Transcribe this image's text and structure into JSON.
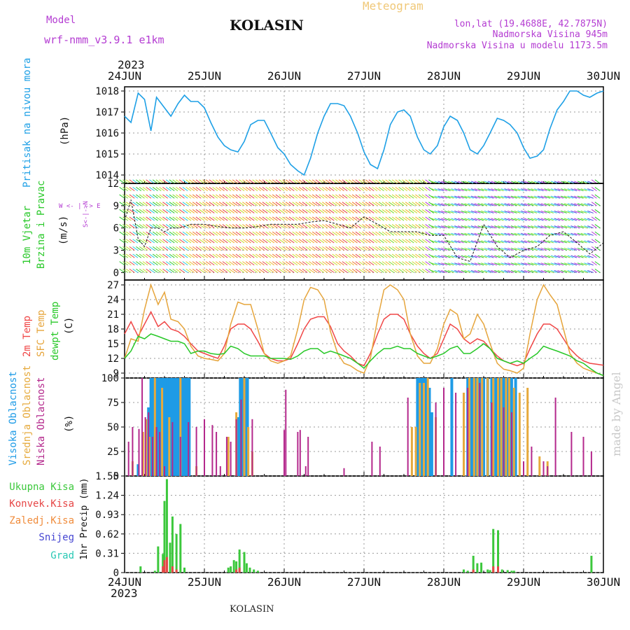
{
  "header": {
    "model_label": "Model",
    "model_name": "wrf-nmm_v3.9.1 e1km",
    "station": "KOLASIN",
    "product": "Meteogram",
    "coords": "lon,lat (19.4688E, 42.7875N)",
    "elevation": "Nadmorska Visina 945m",
    "model_elevation": "Nadmorska Visina u modelu 1173.5m",
    "footer_station": "KOLASIN",
    "credit": "made by Angel",
    "year": "2023"
  },
  "colors": {
    "pressure": "#1ea0e6",
    "t2m": "#f04646",
    "sfc": "#e6a53c",
    "dewpt": "#28c828",
    "high_cloud": "#1e9be6",
    "mid_cloud": "#e6aa3c",
    "low_cloud": "#b4288c",
    "total_precip": "#3cc83c",
    "conv_precip": "#e64646",
    "frz_precip": "#f08c3c",
    "snow": "#4646d2",
    "grad": "#28c8b4",
    "wind_label": "#b43cd2",
    "credit": "#c8c8c8"
  },
  "chart_data": [
    {
      "type": "line",
      "panel": "pressure",
      "ylabel": "Pritisak na nivou mora",
      "unit": "(hPa)",
      "yticks": [
        1014,
        1015,
        1016,
        1017,
        1018
      ],
      "ylim": [
        1013.6,
        1018.2
      ],
      "x_days": [
        "24JUN",
        "25JUN",
        "26JUN",
        "27JUN",
        "28JUN",
        "29JUN",
        "30JUN"
      ],
      "x": [
        0,
        0.08,
        0.17,
        0.25,
        0.33,
        0.4,
        0.5,
        0.58,
        0.67,
        0.75,
        0.83,
        0.92,
        1.0,
        1.08,
        1.17,
        1.25,
        1.33,
        1.42,
        1.5,
        1.58,
        1.67,
        1.75,
        1.83,
        1.92,
        2.0,
        2.08,
        2.17,
        2.25,
        2.33,
        2.42,
        2.5,
        2.58,
        2.67,
        2.75,
        2.83,
        2.92,
        3.0,
        3.08,
        3.17,
        3.25,
        3.33,
        3.42,
        3.5,
        3.58,
        3.67,
        3.75,
        3.83,
        3.92,
        4.0,
        4.08,
        4.17,
        4.25,
        4.33,
        4.42,
        4.5,
        4.58,
        4.67,
        4.75,
        4.83,
        4.92,
        5.0,
        5.08,
        5.17,
        5.25,
        5.33,
        5.42,
        5.5,
        5.58,
        5.67,
        5.75,
        5.83,
        5.92,
        6.0
      ],
      "y": [
        1016.8,
        1016.5,
        1017.9,
        1017.6,
        1016.1,
        1017.7,
        1017.2,
        1016.8,
        1017.4,
        1017.8,
        1017.5,
        1017.5,
        1017.2,
        1016.5,
        1015.8,
        1015.4,
        1015.2,
        1015.1,
        1015.6,
        1016.4,
        1016.6,
        1016.6,
        1016.0,
        1015.3,
        1015.0,
        1014.5,
        1014.2,
        1014.0,
        1014.8,
        1016.0,
        1016.8,
        1017.4,
        1017.4,
        1017.3,
        1016.8,
        1016.0,
        1015.1,
        1014.5,
        1014.3,
        1015.2,
        1016.4,
        1017.0,
        1017.1,
        1016.8,
        1015.8,
        1015.2,
        1015.0,
        1015.4,
        1016.3,
        1016.8,
        1016.6,
        1016.0,
        1015.2,
        1015.0,
        1015.4,
        1016.0,
        1016.7,
        1016.6,
        1016.4,
        1016.0,
        1015.3,
        1014.8,
        1014.9,
        1015.2,
        1016.2,
        1017.1,
        1017.5,
        1018.0,
        1018.0,
        1017.8,
        1017.7,
        1017.9,
        1018.0
      ],
      "color": "#1ea0e6"
    },
    {
      "type": "line",
      "panel": "wind",
      "ylabel": "10m Vjetar Brzina i Pravac",
      "unit": "(m/s)",
      "compass": "W <- | -> E",
      "compass_ns": "S<-|->N",
      "yticks": [
        0,
        3,
        6,
        9,
        12
      ],
      "ylim": [
        -1,
        12
      ],
      "x_days": [
        "24JUN",
        "25JUN",
        "26JUN",
        "27JUN",
        "28JUN",
        "29JUN",
        "30JUN"
      ],
      "x": [
        0,
        0.08,
        0.17,
        0.25,
        0.33,
        0.42,
        0.5,
        0.58,
        0.67,
        0.75,
        0.83,
        0.92,
        1.0,
        1.17,
        1.33,
        1.5,
        1.67,
        1.83,
        2.0,
        2.17,
        2.33,
        2.5,
        2.67,
        2.83,
        3.0,
        3.17,
        3.33,
        3.5,
        3.67,
        3.83,
        4.0,
        4.17,
        4.33,
        4.5,
        4.67,
        4.83,
        5.0,
        5.17,
        5.33,
        5.5,
        5.67,
        5.83,
        6.0
      ],
      "y": [
        7.0,
        9.8,
        4.5,
        3.5,
        6.0,
        6.0,
        5.5,
        6.0,
        6.0,
        6.2,
        6.5,
        6.5,
        6.5,
        6.2,
        6.0,
        6.0,
        6.2,
        6.5,
        6.5,
        6.5,
        6.8,
        7.0,
        6.5,
        6.0,
        7.5,
        6.5,
        5.5,
        5.5,
        5.5,
        5.0,
        5.0,
        2.0,
        1.5,
        6.5,
        3.5,
        2.0,
        3.0,
        3.5,
        5.0,
        5.5,
        4.0,
        2.5,
        4.0
      ],
      "color": "#1a1a1a"
    },
    {
      "type": "line",
      "panel": "temperature",
      "ylabel": "2m Temp / SFC Temp / dewpt Temp",
      "unit": "(C)",
      "yticks": [
        9,
        12,
        15,
        18,
        21,
        24,
        27
      ],
      "ylim": [
        8,
        28
      ],
      "x_days": [
        "24JUN",
        "25JUN",
        "26JUN",
        "27JUN",
        "28JUN",
        "29JUN",
        "30JUN"
      ],
      "x": [
        0,
        0.08,
        0.17,
        0.25,
        0.33,
        0.42,
        0.5,
        0.58,
        0.67,
        0.75,
        0.83,
        0.92,
        1.0,
        1.08,
        1.17,
        1.25,
        1.33,
        1.42,
        1.5,
        1.58,
        1.67,
        1.75,
        1.83,
        1.92,
        2.0,
        2.08,
        2.17,
        2.25,
        2.33,
        2.42,
        2.5,
        2.58,
        2.67,
        2.75,
        2.83,
        2.92,
        3.0,
        3.08,
        3.17,
        3.25,
        3.33,
        3.42,
        3.5,
        3.58,
        3.67,
        3.75,
        3.83,
        3.92,
        4.0,
        4.08,
        4.17,
        4.25,
        4.33,
        4.42,
        4.5,
        4.58,
        4.67,
        4.75,
        4.83,
        4.92,
        5.0,
        5.08,
        5.17,
        5.25,
        5.33,
        5.42,
        5.5,
        5.58,
        5.67,
        5.75,
        5.83,
        5.92,
        6.0
      ],
      "series": [
        {
          "name": "2m Temp",
          "color": "#f04646",
          "values": [
            17.0,
            19.5,
            16.5,
            19.0,
            21.5,
            18.5,
            19.5,
            18.0,
            17.5,
            16.5,
            15.0,
            13.5,
            13.0,
            12.5,
            12.0,
            14.5,
            18.0,
            19.0,
            19.0,
            18.0,
            15.5,
            13.0,
            12.0,
            11.5,
            11.5,
            12.0,
            15.0,
            18.0,
            20.0,
            20.5,
            20.5,
            18.5,
            15.0,
            13.5,
            12.5,
            11.0,
            10.5,
            13.0,
            17.0,
            20.0,
            21.0,
            21.0,
            20.0,
            17.0,
            14.5,
            13.0,
            12.0,
            13.0,
            16.0,
            19.0,
            18.0,
            16.0,
            15.0,
            16.0,
            15.5,
            14.0,
            12.5,
            11.5,
            11.0,
            10.5,
            11.0,
            14.0,
            17.0,
            19.0,
            19.0,
            18.0,
            16.0,
            14.0,
            12.5,
            11.5,
            11.0,
            10.8,
            10.6
          ]
        },
        {
          "name": "SFC Temp",
          "color": "#e6a53c",
          "values": [
            12.0,
            16.0,
            15.5,
            22.0,
            27.0,
            23.0,
            25.5,
            20.0,
            19.5,
            18.0,
            14.5,
            12.5,
            12.0,
            11.8,
            11.5,
            13.0,
            19.0,
            23.5,
            23.0,
            23.0,
            18.0,
            13.0,
            11.5,
            11.0,
            11.5,
            12.5,
            18.0,
            24.0,
            26.5,
            26.0,
            24.0,
            17.5,
            13.0,
            11.0,
            10.5,
            9.5,
            9.0,
            12.0,
            20.0,
            26.0,
            27.0,
            26.0,
            24.0,
            17.0,
            12.5,
            11.0,
            11.0,
            14.0,
            19.0,
            22.0,
            21.0,
            16.0,
            17.0,
            21.0,
            19.0,
            15.0,
            11.0,
            9.8,
            9.5,
            9.0,
            10.0,
            17.0,
            24.0,
            27.0,
            25.0,
            23.0,
            18.0,
            13.0,
            11.0,
            10.0,
            9.5,
            9.0,
            8.5
          ]
        },
        {
          "name": "dewpt Temp",
          "color": "#28c828",
          "values": [
            12.0,
            13.5,
            16.5,
            16.0,
            17.0,
            16.5,
            16.0,
            15.5,
            15.5,
            15.0,
            13.0,
            13.5,
            13.5,
            13.0,
            12.8,
            13.0,
            14.5,
            14.0,
            13.0,
            12.5,
            12.5,
            12.5,
            12.0,
            12.0,
            12.0,
            11.8,
            12.5,
            13.5,
            14.0,
            14.0,
            13.0,
            13.5,
            13.0,
            12.5,
            12.0,
            11.0,
            10.0,
            11.5,
            13.0,
            14.0,
            14.0,
            14.5,
            14.0,
            14.0,
            13.0,
            12.5,
            12.0,
            12.5,
            13.0,
            14.0,
            14.5,
            13.0,
            13.0,
            14.0,
            15.0,
            14.0,
            12.0,
            11.5,
            11.0,
            11.5,
            11.0,
            12.0,
            13.0,
            14.5,
            14.0,
            13.5,
            13.0,
            12.5,
            11.5,
            11.0,
            10.0,
            9.0,
            8.5
          ]
        }
      ]
    },
    {
      "type": "bar",
      "panel": "clouds",
      "ylabel": "Visoka Oblacnost / Srednja Oblacnost / Niska Oblacnost",
      "unit": "(%)",
      "yticks": [
        0,
        25,
        50,
        75,
        100
      ],
      "ylim": [
        0,
        100
      ],
      "x_days": [
        "24JUN",
        "25JUN",
        "26JUN",
        "27JUN",
        "28JUN",
        "29JUN",
        "30JUN"
      ],
      "series": [
        {
          "name": "Visoka Oblacnost",
          "color": "#1e9be6",
          "x": [
            0.17,
            0.3,
            0.33,
            0.36,
            0.39,
            0.42,
            0.45,
            0.48,
            0.51,
            0.54,
            0.57,
            0.6,
            0.63,
            0.66,
            0.69,
            0.72,
            0.75,
            0.78,
            0.81,
            1.42,
            1.45,
            1.48,
            1.51,
            1.54,
            3.67,
            3.7,
            3.73,
            3.76,
            3.79,
            3.82,
            3.85,
            4.1,
            4.3,
            4.33,
            4.36,
            4.4,
            4.45,
            4.5,
            4.55,
            4.6,
            4.65,
            4.7,
            4.75,
            4.8,
            4.85,
            4.9
          ],
          "values": [
            12,
            70,
            100,
            100,
            100,
            100,
            100,
            100,
            100,
            100,
            100,
            100,
            100,
            100,
            100,
            100,
            100,
            100,
            100,
            60,
            100,
            100,
            100,
            100,
            100,
            100,
            100,
            100,
            100,
            90,
            65,
            100,
            100,
            100,
            100,
            100,
            100,
            100,
            100,
            100,
            100,
            100,
            100,
            100,
            100,
            100
          ]
        },
        {
          "name": "Srednja Oblacnost",
          "color": "#e6aa3c",
          "x": [
            0.1,
            0.23,
            0.27,
            0.31,
            0.38,
            0.47,
            0.56,
            0.7,
            0.9,
            1.3,
            1.4,
            1.5,
            1.55,
            1.6,
            3.6,
            3.65,
            3.7,
            3.75,
            3.8,
            3.9,
            4.25,
            4.32,
            4.38,
            4.42,
            4.48,
            4.55,
            4.62,
            4.68,
            4.72,
            4.78,
            4.82,
            4.88,
            4.95,
            5.05,
            5.2,
            5.3
          ],
          "values": [
            15,
            45,
            58,
            40,
            100,
            90,
            60,
            100,
            10,
            40,
            65,
            100,
            50,
            25,
            50,
            50,
            95,
            95,
            100,
            60,
            85,
            100,
            100,
            100,
            100,
            100,
            100,
            100,
            100,
            100,
            100,
            90,
            85,
            90,
            20,
            15
          ]
        },
        {
          "name": "Niska Oblacnost",
          "color": "#b4288c",
          "x": [
            0.05,
            0.1,
            0.18,
            0.22,
            0.26,
            0.3,
            0.35,
            0.4,
            0.44,
            0.5,
            0.6,
            0.7,
            0.8,
            0.9,
            1.0,
            1.1,
            1.15,
            1.2,
            1.28,
            1.33,
            1.4,
            1.46,
            1.6,
            2.0,
            2.02,
            2.17,
            2.2,
            2.27,
            2.3,
            2.75,
            3.1,
            3.2,
            3.55,
            3.9,
            4.0,
            4.15,
            4.3,
            4.45,
            4.6,
            4.75,
            4.85,
            5.0,
            5.1,
            5.25,
            5.3,
            5.4,
            5.6,
            5.75,
            5.85
          ],
          "values": [
            35,
            50,
            48,
            100,
            60,
            65,
            40,
            50,
            45,
            10,
            55,
            40,
            55,
            50,
            58,
            52,
            45,
            10,
            40,
            35,
            58,
            78,
            58,
            47,
            88,
            45,
            47,
            10,
            40,
            8,
            35,
            30,
            80,
            75,
            90,
            85,
            90,
            95,
            75,
            70,
            65,
            15,
            30,
            15,
            10,
            80,
            45,
            40,
            25
          ]
        }
      ]
    },
    {
      "type": "bar",
      "panel": "precipitation",
      "ylabel": "1hr Precip (mm)",
      "legend": [
        "Ukupna Kisa",
        "Konvek.Kisa",
        "Zaledj.Kisa",
        "Snijeg",
        "Grad"
      ],
      "yticks": [
        0,
        0.31,
        0.62,
        0.93,
        1.24,
        1.55
      ],
      "ylim": [
        0,
        1.55
      ],
      "x_days": [
        "24JUN",
        "25JUN",
        "26JUN",
        "27JUN",
        "28JUN",
        "29JUN",
        "30JUN"
      ],
      "series": [
        {
          "name": "Ukupna Kisa",
          "color": "#3cc83c",
          "x": [
            0.2,
            0.38,
            0.42,
            0.48,
            0.5,
            0.53,
            0.57,
            0.6,
            0.65,
            0.7,
            0.75,
            1.3,
            1.33,
            1.37,
            1.4,
            1.44,
            1.5,
            1.53,
            1.57,
            1.62,
            1.67,
            4.25,
            4.3,
            4.37,
            4.42,
            4.47,
            4.55,
            4.58,
            4.62,
            4.68,
            4.73,
            4.8,
            4.85,
            4.88,
            5.85
          ],
          "values": [
            0.1,
            0.03,
            0.42,
            0.3,
            1.15,
            1.5,
            0.48,
            0.9,
            0.62,
            0.78,
            0.08,
            0.08,
            0.1,
            0.2,
            0.18,
            0.37,
            0.33,
            0.15,
            0.08,
            0.05,
            0.03,
            0.05,
            0.03,
            0.27,
            0.15,
            0.16,
            0.05,
            0.04,
            0.7,
            0.68,
            0.05,
            0.04,
            0.03,
            0.03,
            0.27
          ]
        },
        {
          "name": "Konvek.Kisa",
          "color": "#e64646",
          "x": [
            0.48,
            0.5,
            0.53,
            0.6,
            0.65,
            1.4,
            1.44,
            4.37,
            4.62,
            4.68
          ],
          "values": [
            0.1,
            0.2,
            0.25,
            0.1,
            0.05,
            0.05,
            0.08,
            0.05,
            0.1,
            0.1
          ]
        }
      ]
    }
  ]
}
